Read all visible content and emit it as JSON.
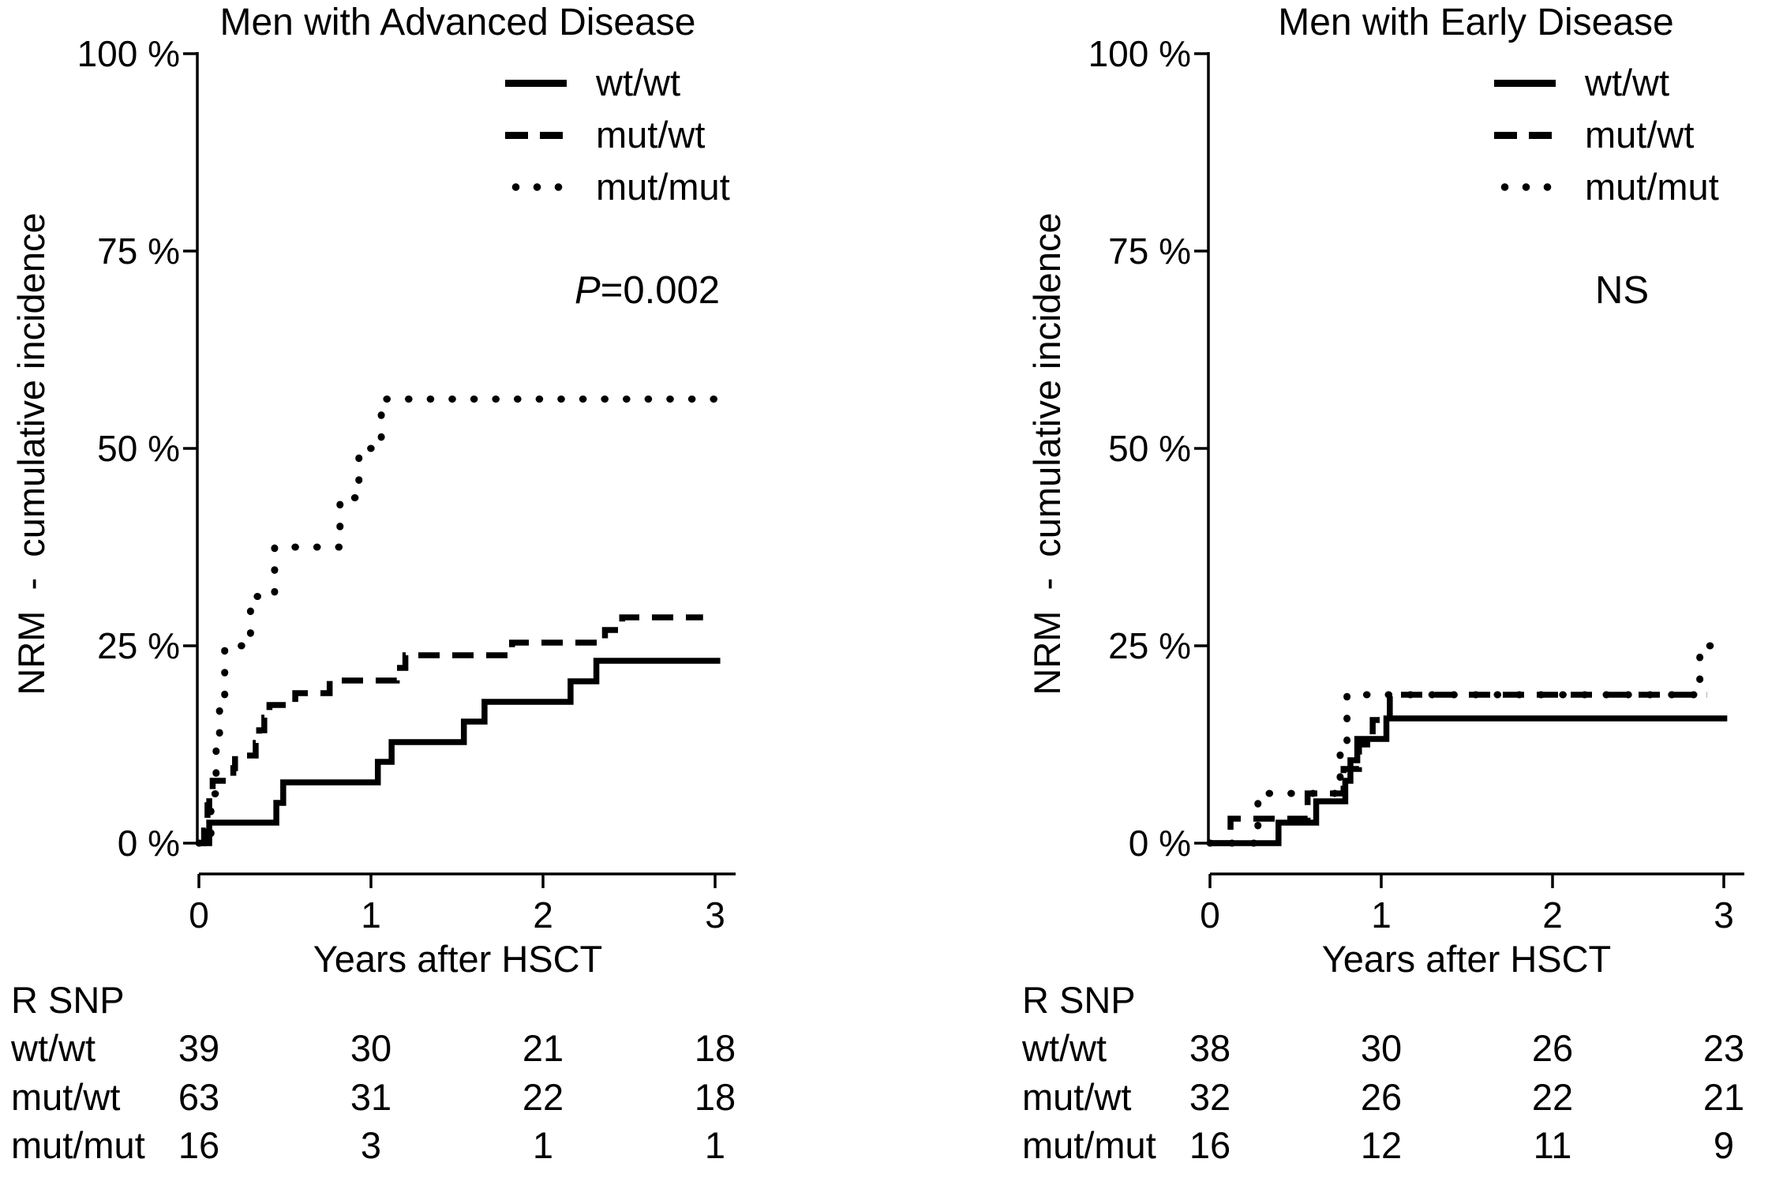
{
  "figure_bg": "#ffffff",
  "line_color": "#000000",
  "chart_data": [
    {
      "type": "line",
      "subtype": "cumulative-incidence-step-plot",
      "title": "Men with Advanced Disease",
      "ylabel": "NRM  -  cumulative incidence",
      "xlabel": "Years after HSCT",
      "x_range_years": [
        0,
        3
      ],
      "y_range_percent": [
        0,
        100
      ],
      "x_tick_labels": [
        "0",
        "1",
        "2",
        "3"
      ],
      "y_tick_labels": [
        "100 %",
        "75 %",
        "50 %",
        "25 %",
        "0 %"
      ],
      "grid": false,
      "legend_position": "top-right",
      "annotation": {
        "italic": "P",
        "text": "=0.002"
      },
      "series": [
        {
          "name": "wt/wt",
          "style": "solid",
          "n_initial": 39,
          "points": [
            [
              0,
              0
            ],
            [
              0.06,
              2.6
            ],
            [
              0.45,
              5.1
            ],
            [
              0.49,
              7.7
            ],
            [
              1.04,
              10.3
            ],
            [
              1.12,
              12.8
            ],
            [
              1.54,
              15.4
            ],
            [
              1.66,
              17.9
            ],
            [
              2.16,
              20.5
            ],
            [
              2.31,
              23.1
            ]
          ],
          "end_x": 3.03
        },
        {
          "name": "mut/wt",
          "style": "dashed",
          "n_initial": 63,
          "points": [
            [
              0,
              0
            ],
            [
              0.03,
              1.6
            ],
            [
              0.04,
              3.2
            ],
            [
              0.05,
              4.8
            ],
            [
              0.06,
              6.3
            ],
            [
              0.08,
              7.9
            ],
            [
              0.2,
              9.5
            ],
            [
              0.21,
              11.1
            ],
            [
              0.33,
              12.7
            ],
            [
              0.35,
              14.3
            ],
            [
              0.38,
              15.9
            ],
            [
              0.41,
              17.5
            ],
            [
              0.56,
              19.0
            ],
            [
              0.76,
              20.6
            ],
            [
              1.15,
              22.2
            ],
            [
              1.2,
              23.8
            ],
            [
              1.82,
              25.4
            ],
            [
              2.36,
              27.0
            ],
            [
              2.46,
              28.6
            ]
          ],
          "end_x": 2.93
        },
        {
          "name": "mut/mut",
          "style": "dotted",
          "n_initial": 16,
          "points": [
            [
              0,
              0
            ],
            [
              0.07,
              6.25
            ],
            [
              0.1,
              12.5
            ],
            [
              0.12,
              18.75
            ],
            [
              0.15,
              25.0
            ],
            [
              0.3,
              31.25
            ],
            [
              0.44,
              37.5
            ],
            [
              0.82,
              43.75
            ],
            [
              0.93,
              50.0
            ],
            [
              1.06,
              56.25
            ]
          ],
          "end_x": 3.03
        }
      ],
      "risk_table": {
        "header": "R SNP",
        "time_points_years": [
          0,
          1,
          2,
          3
        ],
        "rows": [
          {
            "label": "wt/wt",
            "counts": [
              "39",
              "30",
              "21",
              "18"
            ]
          },
          {
            "label": "mut/wt",
            "counts": [
              "63",
              "31",
              "22",
              "18"
            ]
          },
          {
            "label": "mut/mut",
            "counts": [
              "16",
              "3",
              "1",
              "1"
            ]
          }
        ]
      }
    },
    {
      "type": "line",
      "subtype": "cumulative-incidence-step-plot",
      "title": "Men with Early Disease",
      "ylabel": "NRM  -  cumulative incidence",
      "xlabel": "Years after HSCT",
      "x_range_years": [
        0,
        3
      ],
      "y_range_percent": [
        0,
        100
      ],
      "x_tick_labels": [
        "0",
        "1",
        "2",
        "3"
      ],
      "y_tick_labels": [
        "100 %",
        "75 %",
        "50 %",
        "25 %",
        "0 %"
      ],
      "grid": false,
      "legend_position": "top-right",
      "annotation": {
        "italic": "",
        "text": "NS"
      },
      "series": [
        {
          "name": "wt/wt",
          "style": "solid",
          "n_initial": 38,
          "points": [
            [
              0,
              0
            ],
            [
              0.4,
              2.6
            ],
            [
              0.62,
              5.3
            ],
            [
              0.79,
              7.9
            ],
            [
              0.82,
              10.5
            ],
            [
              0.86,
              13.2
            ],
            [
              1.03,
              15.8
            ]
          ],
          "end_x": 3.02
        },
        {
          "name": "mut/wt",
          "style": "dashed",
          "n_initial": 32,
          "points": [
            [
              0,
              0
            ],
            [
              0.12,
              3.1
            ],
            [
              0.57,
              6.3
            ],
            [
              0.78,
              9.4
            ],
            [
              0.87,
              12.5
            ],
            [
              0.95,
              15.6
            ],
            [
              1.05,
              18.8
            ]
          ],
          "end_x": 2.9
        },
        {
          "name": "mut/mut",
          "style": "dotted",
          "n_initial": 16,
          "points": [
            [
              0,
              0
            ],
            [
              0.28,
              6.3
            ],
            [
              0.76,
              12.5
            ],
            [
              0.8,
              18.8
            ],
            [
              2.86,
              25.0
            ]
          ],
          "end_x": 2.97
        }
      ],
      "risk_table": {
        "header": "R SNP",
        "time_points_years": [
          0,
          1,
          2,
          3
        ],
        "rows": [
          {
            "label": "wt/wt",
            "counts": [
              "38",
              "30",
              "26",
              "23"
            ]
          },
          {
            "label": "mut/wt",
            "counts": [
              "32",
              "26",
              "22",
              "21"
            ]
          },
          {
            "label": "mut/mut",
            "counts": [
              "16",
              "12",
              "11",
              "9"
            ]
          }
        ]
      }
    }
  ]
}
